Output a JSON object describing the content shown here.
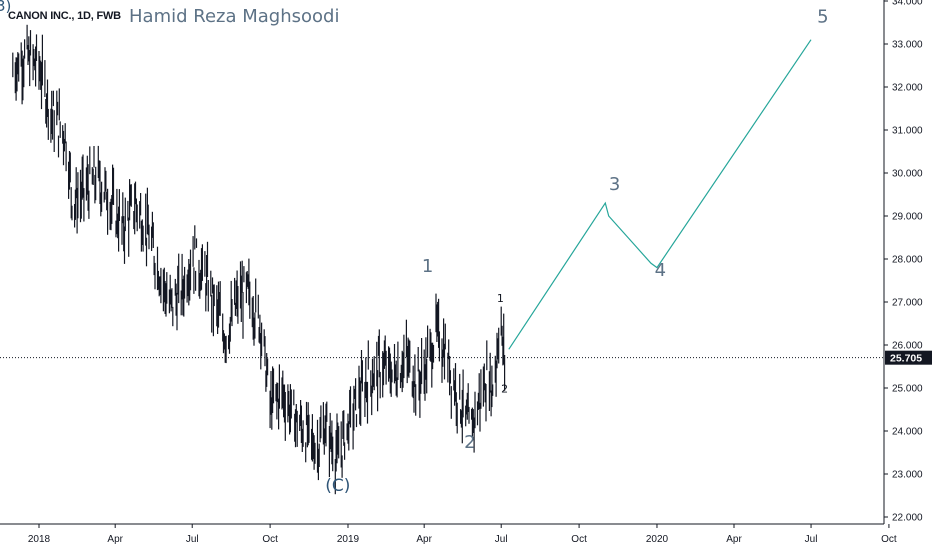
{
  "header": {
    "symbol": "CANON INC., 1D, FWB",
    "author": "Hamid Reza Maghsoodi",
    "edge_mark": "3)"
  },
  "colors": {
    "candle": "#131722",
    "projection": "#26a69a",
    "price_badge": "#131722",
    "label_text": "#5d7286",
    "label_c": "#2f5577"
  },
  "chart_data": {
    "type": "line",
    "title": "CANON INC., 1D, FWB",
    "ylim": [
      22.0,
      34.0
    ],
    "y_ticks": [
      "22.000",
      "23.000",
      "24.000",
      "25.000",
      "26.000",
      "27.000",
      "28.000",
      "29.000",
      "30.000",
      "31.000",
      "32.000",
      "33.000",
      "34.000"
    ],
    "x_ticks": [
      "2018",
      "Apr",
      "Jul",
      "Oct",
      "2019",
      "Apr",
      "Jul",
      "Oct",
      "2020",
      "Apr",
      "Jul",
      "Oct"
    ],
    "last_price": "25.705",
    "grid": false,
    "price_path": [
      [
        "2017-12-01",
        32.4
      ],
      [
        "2017-12-15",
        32.7
      ],
      [
        "2018-01-01",
        32.5
      ],
      [
        "2018-01-15",
        31.4
      ],
      [
        "2018-02-01",
        30.9
      ],
      [
        "2018-02-10",
        29.3
      ],
      [
        "2018-02-25",
        29.6
      ],
      [
        "2018-03-10",
        29.9
      ],
      [
        "2018-03-25",
        29.4
      ],
      [
        "2018-04-10",
        28.7
      ],
      [
        "2018-04-25",
        29.3
      ],
      [
        "2018-05-10",
        28.6
      ],
      [
        "2018-05-25",
        27.6
      ],
      [
        "2018-06-05",
        26.9
      ],
      [
        "2018-06-20",
        27.3
      ],
      [
        "2018-07-01",
        28.1
      ],
      [
        "2018-07-15",
        27.6
      ],
      [
        "2018-07-30",
        26.8
      ],
      [
        "2018-08-10",
        26.2
      ],
      [
        "2018-08-25",
        27.1
      ],
      [
        "2018-09-05",
        27.2
      ],
      [
        "2018-09-20",
        26.5
      ],
      [
        "2018-10-01",
        24.6
      ],
      [
        "2018-10-15",
        24.9
      ],
      [
        "2018-10-30",
        24.3
      ],
      [
        "2018-11-10",
        24.0
      ],
      [
        "2018-11-25",
        23.6
      ],
      [
        "2018-12-05",
        24.1
      ],
      [
        "2018-12-20",
        23.4
      ],
      [
        "2018-12-28",
        23.9
      ],
      [
        "2019-01-10",
        24.6
      ],
      [
        "2019-01-25",
        25.2
      ],
      [
        "2019-02-10",
        25.5
      ],
      [
        "2019-02-25",
        25.3
      ],
      [
        "2019-03-10",
        25.7
      ],
      [
        "2019-03-25",
        25.1
      ],
      [
        "2019-04-05",
        25.6
      ],
      [
        "2019-04-15",
        26.3
      ],
      [
        "2019-04-25",
        25.9
      ],
      [
        "2019-05-05",
        25.2
      ],
      [
        "2019-05-15",
        24.6
      ],
      [
        "2019-05-25",
        24.0
      ],
      [
        "2019-06-05",
        24.7
      ],
      [
        "2019-06-15",
        25.3
      ],
      [
        "2019-06-20",
        25.0
      ],
      [
        "2019-06-25",
        25.6
      ],
      [
        "2019-06-30",
        26.9
      ],
      [
        "2019-07-02",
        26.0
      ],
      [
        "2019-07-05",
        25.7
      ]
    ],
    "projection": [
      [
        "2019-07-10",
        25.9
      ],
      [
        "2019-11-01",
        29.3
      ],
      [
        "2019-11-05",
        29.0
      ],
      [
        "2019-12-25",
        27.9
      ],
      [
        "2020-01-01",
        27.8
      ],
      [
        "2020-07-01",
        33.1
      ]
    ],
    "wave_labels": [
      {
        "text": "(C)",
        "x": "2018-12-20",
        "y": 22.6,
        "style": "c"
      },
      {
        "text": "1",
        "x": "2019-04-05",
        "y": 27.7,
        "style": "big"
      },
      {
        "text": "2",
        "x": "2019-05-25",
        "y": 23.6,
        "style": "big"
      },
      {
        "text": "1",
        "x": "2019-06-30",
        "y": 27.0,
        "style": "small"
      },
      {
        "text": "2",
        "x": "2019-07-05",
        "y": 24.9,
        "style": "small"
      },
      {
        "text": "3",
        "x": "2019-11-12",
        "y": 29.6,
        "style": "big"
      },
      {
        "text": "4",
        "x": "2020-01-05",
        "y": 27.6,
        "style": "big"
      },
      {
        "text": "5",
        "x": "2020-07-15",
        "y": 33.5,
        "style": "big"
      }
    ]
  }
}
